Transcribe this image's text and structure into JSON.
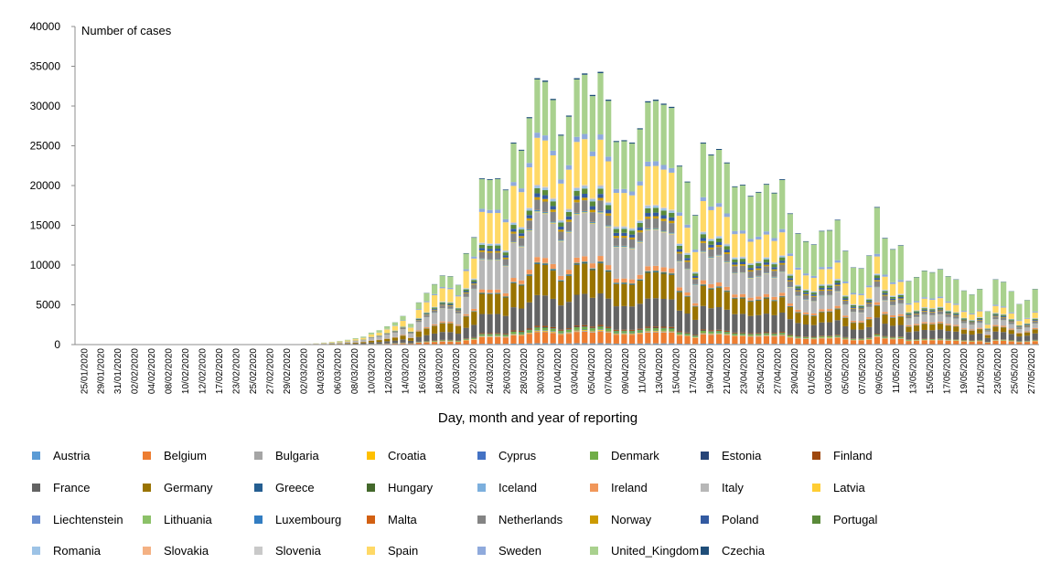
{
  "chart_data": {
    "type": "bar",
    "stacked": true,
    "ylabel": "Number of cases",
    "xlabel": "Day, month and year of reporting",
    "ylim": [
      0,
      40000
    ],
    "yticks": [
      0,
      5000,
      10000,
      15000,
      20000,
      25000,
      30000,
      35000,
      40000
    ],
    "ytick_labels": [
      "0",
      "5000",
      "10000",
      "15000",
      "20000",
      "25000",
      "30000",
      "35000",
      "40000"
    ],
    "grid": false,
    "legend_position": "bottom",
    "x_tick_labels": [
      "25/01/2020",
      "29/01/2020",
      "31/01/2020",
      "02/02/2020",
      "04/02/2020",
      "08/02/2020",
      "10/02/2020",
      "12/02/2020",
      "17/02/2020",
      "23/02/2020",
      "25/02/2020",
      "27/02/2020",
      "29/02/2020",
      "02/03/2020",
      "04/03/2020",
      "06/03/2020",
      "08/03/2020",
      "10/03/2020",
      "12/03/2020",
      "14/03/2020",
      "16/03/2020",
      "18/03/2020",
      "20/03/2020",
      "22/03/2020",
      "24/03/2020",
      "26/03/2020",
      "28/03/2020",
      "30/03/2020",
      "01/04/2020",
      "03/04/2020",
      "05/04/2020",
      "07/04/2020",
      "09/04/2020",
      "11/04/2020",
      "13/04/2020",
      "15/04/2020",
      "17/04/2020",
      "19/04/2020",
      "21/04/2020",
      "23/04/2020",
      "25/04/2020",
      "27/04/2020",
      "29/04/2020",
      "01/05/2020",
      "03/05/2020",
      "05/05/2020",
      "07/05/2020",
      "09/05/2020",
      "11/05/2020",
      "13/05/2020",
      "15/05/2020",
      "17/05/2020",
      "19/05/2020",
      "21/05/2020",
      "23/05/2020",
      "25/05/2020",
      "27/05/2020"
    ],
    "totals": [
      20,
      20,
      20,
      20,
      20,
      20,
      20,
      20,
      20,
      20,
      20,
      20,
      20,
      20,
      20,
      20,
      20,
      20,
      20,
      20,
      20,
      20,
      20,
      20,
      20,
      20,
      30,
      40,
      50,
      80,
      150,
      250,
      350,
      450,
      600,
      800,
      1000,
      1500,
      1800,
      2300,
      2800,
      3600,
      2600,
      5300,
      6500,
      7600,
      8700,
      8600,
      7500,
      11500,
      13500,
      20900,
      20800,
      20900,
      19500,
      25400,
      24500,
      28600,
      33500,
      33200,
      30900,
      26400,
      28800,
      33500,
      34100,
      31400,
      34300,
      30800,
      25600,
      25700,
      25400,
      27200,
      30600,
      30800,
      30300,
      29900,
      22500,
      20500,
      16300,
      25400,
      23900,
      24600,
      22900,
      19900,
      20100,
      18700,
      19200,
      20200,
      19100,
      20800,
      16500,
      14000,
      13000,
      12600,
      14300,
      14400,
      15700,
      11800,
      9700,
      9600,
      11200,
      17300,
      13400,
      12000,
      12500,
      8000,
      8500,
      9300,
      9100,
      9500,
      8600,
      8200,
      6800,
      6300,
      7000,
      4200,
      8200,
      7900,
      6700,
      5100,
      5600,
      7000
    ],
    "series": [
      {
        "name": "Austria",
        "share": 0.005
      },
      {
        "name": "Belgium",
        "share": 0.04
      },
      {
        "name": "Bulgaria",
        "share": 0.003
      },
      {
        "name": "Croatia",
        "share": 0.003
      },
      {
        "name": "Cyprus",
        "share": 0.002
      },
      {
        "name": "Denmark",
        "share": 0.01
      },
      {
        "name": "Estonia",
        "share": 0.002
      },
      {
        "name": "Finland",
        "share": 0.005
      },
      {
        "name": "France",
        "share": 0.12
      },
      {
        "name": "Germany",
        "share": 0.14
      },
      {
        "name": "Greece",
        "share": 0.003
      },
      {
        "name": "Hungary",
        "share": 0.003
      },
      {
        "name": "Iceland",
        "share": 0.002
      },
      {
        "name": "Ireland",
        "share": 0.02
      },
      {
        "name": "Italy",
        "share": 0.19
      },
      {
        "name": "Latvia",
        "share": 0.002
      },
      {
        "name": "Liechtenstein",
        "share": 0.001
      },
      {
        "name": "Lithuania",
        "share": 0.002
      },
      {
        "name": "Luxembourg",
        "share": 0.003
      },
      {
        "name": "Malta",
        "share": 0.001
      },
      {
        "name": "Netherlands",
        "share": 0.04
      },
      {
        "name": "Norway",
        "share": 0.01
      },
      {
        "name": "Poland",
        "share": 0.015
      },
      {
        "name": "Portugal",
        "share": 0.02
      },
      {
        "name": "Romania",
        "share": 0.01
      },
      {
        "name": "Slovakia",
        "share": 0.002
      },
      {
        "name": "Slovenia",
        "share": 0.002
      },
      {
        "name": "Spain",
        "share": 0.2
      },
      {
        "name": "Sweden",
        "share": 0.02
      },
      {
        "name": "United_Kingdom",
        "share": 0.12
      },
      {
        "name": "Czechia",
        "share": 0.005
      }
    ]
  },
  "colors": {
    "Austria": "#5B9BD5",
    "Belgium": "#ED7D31",
    "Bulgaria": "#A5A5A5",
    "Croatia": "#FFC000",
    "Cyprus": "#4472C4",
    "Denmark": "#70AD47",
    "Estonia": "#264478",
    "Finland": "#9E480E",
    "France": "#636363",
    "Germany": "#997300",
    "Greece": "#255E91",
    "Hungary": "#43682B",
    "Iceland": "#7CAFDD",
    "Ireland": "#F1975A",
    "Italy": "#B7B7B7",
    "Latvia": "#FFCD33",
    "Liechtenstein": "#698ED0",
    "Lithuania": "#8CC168",
    "Luxembourg": "#327DC2",
    "Malta": "#D26012",
    "Netherlands": "#848484",
    "Norway": "#CC9A00",
    "Poland": "#335AA1",
    "Portugal": "#5A8A39",
    "Romania": "#9DC3E6",
    "Slovakia": "#F4B183",
    "Slovenia": "#C9C9C9",
    "Spain": "#FFD966",
    "Sweden": "#8FAADC",
    "United_Kingdom": "#A9D18E",
    "Czechia": "#1F4E79"
  }
}
